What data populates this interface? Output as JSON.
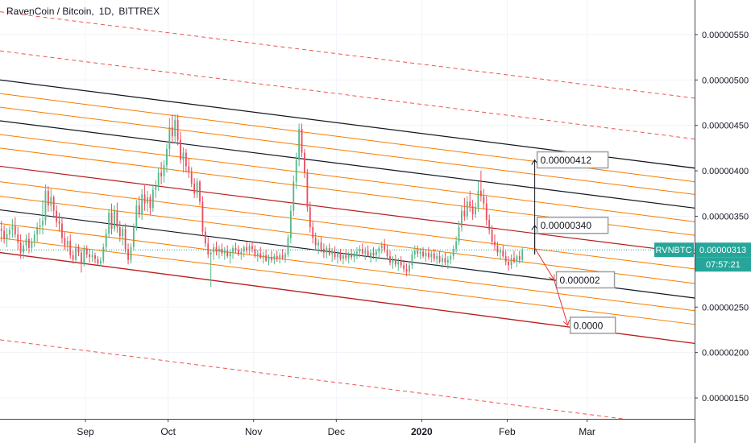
{
  "title": {
    "symbol": "RavenCoin / Bitcoin",
    "interval": "1D",
    "exchange": "BITTREX"
  },
  "chart_data": {
    "type": "candlestick",
    "title": "RavenCoin / Bitcoin, 1D, BITTREX",
    "x_labels": [
      "Sep",
      "Oct",
      "Nov",
      "Dec",
      "2020",
      "Feb",
      "Mar"
    ],
    "x_label_days": [
      31,
      61,
      92,
      122,
      153,
      184,
      213
    ],
    "x_label_bold": [
      false,
      false,
      false,
      false,
      true,
      false,
      false
    ],
    "x_range_days": [
      0,
      252
    ],
    "x_unit": "days from Aug 1, 2019",
    "y_ticks": [
      "0.00000550",
      "0.00000500",
      "0.00000450",
      "0.00000400",
      "0.00000350",
      "0.00000250",
      "0.00000200",
      "0.00000150"
    ],
    "y_tick_values": [
      550,
      500,
      450,
      400,
      350,
      250,
      200,
      150
    ],
    "y_partial_tick": "0.",
    "y_partial_tick_value": 300,
    "y_range": [
      127,
      588
    ],
    "y_unit": "price x 1e-8 BTC",
    "candles": [
      [
        0,
        336,
        345,
        322,
        334
      ],
      [
        1,
        334,
        340,
        320,
        325
      ],
      [
        2,
        325,
        337,
        316,
        330
      ],
      [
        3,
        330,
        339,
        324,
        335
      ],
      [
        4,
        335,
        347,
        326,
        339
      ],
      [
        5,
        339,
        349,
        326,
        330
      ],
      [
        6,
        330,
        338,
        313,
        321
      ],
      [
        7,
        321,
        330,
        303,
        310
      ],
      [
        8,
        310,
        323,
        303,
        318
      ],
      [
        9,
        318,
        330,
        312,
        325
      ],
      [
        10,
        325,
        332,
        309,
        315
      ],
      [
        11,
        315,
        326,
        310,
        322
      ],
      [
        12,
        322,
        334,
        316,
        330
      ],
      [
        13,
        330,
        343,
        321,
        338
      ],
      [
        14,
        338,
        348,
        330,
        340
      ],
      [
        15,
        340,
        368,
        330,
        345
      ],
      [
        16,
        345,
        385,
        340,
        378
      ],
      [
        17,
        378,
        383,
        355,
        362
      ],
      [
        18,
        362,
        380,
        355,
        371
      ],
      [
        19,
        371,
        373,
        348,
        356
      ],
      [
        20,
        356,
        362,
        338,
        344
      ],
      [
        21,
        344,
        354,
        333,
        342
      ],
      [
        22,
        342,
        348,
        320,
        326
      ],
      [
        23,
        326,
        333,
        313,
        318
      ],
      [
        24,
        318,
        328,
        311,
        323
      ],
      [
        25,
        323,
        330,
        303,
        307
      ],
      [
        26,
        307,
        312,
        298,
        302
      ],
      [
        27,
        302,
        320,
        298,
        316
      ],
      [
        28,
        316,
        319,
        306,
        310
      ],
      [
        29,
        310,
        314,
        288,
        298
      ],
      [
        30,
        298,
        318,
        295,
        314
      ],
      [
        31,
        314,
        318,
        304,
        308
      ],
      [
        32,
        308,
        314,
        299,
        305
      ],
      [
        33,
        305,
        312,
        300,
        307
      ],
      [
        34,
        307,
        310,
        298,
        303
      ],
      [
        35,
        303,
        306,
        296,
        298
      ],
      [
        36,
        298,
        305,
        295,
        301
      ],
      [
        37,
        301,
        320,
        298,
        316
      ],
      [
        38,
        316,
        336,
        312,
        331
      ],
      [
        39,
        331,
        358,
        326,
        354
      ],
      [
        40,
        354,
        364,
        330,
        336
      ],
      [
        41,
        336,
        362,
        333,
        356
      ],
      [
        42,
        356,
        365,
        332,
        338
      ],
      [
        43,
        338,
        345,
        322,
        328
      ],
      [
        44,
        328,
        340,
        318,
        336
      ],
      [
        45,
        336,
        342,
        310,
        314
      ],
      [
        46,
        314,
        320,
        297,
        302
      ],
      [
        47,
        302,
        320,
        298,
        316
      ],
      [
        48,
        316,
        342,
        312,
        338
      ],
      [
        49,
        338,
        368,
        334,
        362
      ],
      [
        50,
        362,
        372,
        348,
        352
      ],
      [
        51,
        352,
        380,
        346,
        374
      ],
      [
        52,
        374,
        384,
        356,
        364
      ],
      [
        53,
        364,
        378,
        355,
        371
      ],
      [
        54,
        371,
        374,
        351,
        359
      ],
      [
        55,
        359,
        385,
        355,
        379
      ],
      [
        56,
        379,
        390,
        370,
        383
      ],
      [
        57,
        383,
        404,
        378,
        398
      ],
      [
        58,
        398,
        410,
        385,
        394
      ],
      [
        59,
        394,
        412,
        387,
        406
      ],
      [
        60,
        406,
        430,
        398,
        424
      ],
      [
        61,
        424,
        458,
        417,
        448
      ],
      [
        62,
        448,
        462,
        430,
        438
      ],
      [
        63,
        438,
        462,
        430,
        456
      ],
      [
        64,
        456,
        462,
        428,
        434
      ],
      [
        65,
        434,
        443,
        408,
        412
      ],
      [
        66,
        412,
        426,
        398,
        420
      ],
      [
        67,
        420,
        424,
        398,
        405
      ],
      [
        68,
        405,
        414,
        392,
        398
      ],
      [
        69,
        398,
        404,
        382,
        386
      ],
      [
        70,
        386,
        392,
        370,
        375
      ],
      [
        71,
        375,
        392,
        370,
        388
      ],
      [
        72,
        388,
        390,
        362,
        366
      ],
      [
        73,
        366,
        372,
        328,
        333
      ],
      [
        74,
        333,
        338,
        316,
        320
      ],
      [
        75,
        320,
        327,
        304,
        308
      ],
      [
        76,
        308,
        314,
        272,
        310
      ],
      [
        77,
        310,
        320,
        302,
        316
      ],
      [
        78,
        316,
        322,
        307,
        311
      ],
      [
        79,
        311,
        318,
        303,
        314
      ],
      [
        80,
        314,
        320,
        306,
        309
      ],
      [
        81,
        309,
        316,
        302,
        312
      ],
      [
        82,
        312,
        318,
        304,
        306
      ],
      [
        83,
        306,
        314,
        298,
        310
      ],
      [
        84,
        310,
        318,
        303,
        315
      ],
      [
        85,
        315,
        321,
        309,
        313
      ],
      [
        86,
        313,
        318,
        306,
        308
      ],
      [
        87,
        308,
        315,
        302,
        311
      ],
      [
        88,
        311,
        318,
        305,
        316
      ],
      [
        89,
        316,
        322,
        309,
        312
      ],
      [
        90,
        312,
        320,
        307,
        317
      ],
      [
        91,
        317,
        322,
        310,
        314
      ],
      [
        92,
        314,
        318,
        304,
        307
      ],
      [
        93,
        307,
        313,
        300,
        309
      ],
      [
        94,
        309,
        316,
        303,
        304
      ],
      [
        95,
        304,
        311,
        298,
        307
      ],
      [
        96,
        307,
        313,
        300,
        301
      ],
      [
        97,
        301,
        308,
        296,
        305
      ],
      [
        98,
        305,
        312,
        299,
        302
      ],
      [
        99,
        302,
        309,
        297,
        306
      ],
      [
        100,
        306,
        312,
        300,
        303
      ],
      [
        101,
        303,
        310,
        298,
        307
      ],
      [
        102,
        307,
        314,
        302,
        304
      ],
      [
        103,
        304,
        311,
        299,
        308
      ],
      [
        104,
        308,
        330,
        305,
        326
      ],
      [
        105,
        326,
        362,
        320,
        356
      ],
      [
        106,
        356,
        395,
        350,
        388
      ],
      [
        107,
        388,
        420,
        380,
        412
      ],
      [
        108,
        412,
        452,
        405,
        446
      ],
      [
        109,
        446,
        452,
        415,
        420
      ],
      [
        110,
        420,
        424,
        392,
        398
      ],
      [
        111,
        398,
        402,
        355,
        360
      ],
      [
        112,
        360,
        366,
        332,
        338
      ],
      [
        113,
        338,
        344,
        320,
        326
      ],
      [
        114,
        326,
        332,
        312,
        318
      ],
      [
        115,
        318,
        325,
        308,
        321
      ],
      [
        116,
        321,
        327,
        310,
        314
      ],
      [
        117,
        314,
        320,
        304,
        310
      ],
      [
        118,
        310,
        318,
        304,
        315
      ],
      [
        119,
        315,
        320,
        306,
        308
      ],
      [
        120,
        308,
        315,
        300,
        311
      ],
      [
        121,
        311,
        317,
        302,
        305
      ],
      [
        122,
        305,
        312,
        298,
        309
      ],
      [
        123,
        309,
        314,
        301,
        303
      ],
      [
        124,
        303,
        310,
        297,
        307
      ],
      [
        125,
        307,
        314,
        301,
        304
      ],
      [
        126,
        304,
        311,
        298,
        308
      ],
      [
        127,
        308,
        314,
        302,
        305
      ],
      [
        128,
        305,
        312,
        299,
        309
      ],
      [
        129,
        309,
        316,
        303,
        311
      ],
      [
        130,
        311,
        318,
        305,
        314
      ],
      [
        131,
        314,
        320,
        306,
        309
      ],
      [
        132,
        309,
        316,
        302,
        312
      ],
      [
        133,
        312,
        318,
        305,
        306
      ],
      [
        134,
        306,
        313,
        299,
        310
      ],
      [
        135,
        310,
        316,
        303,
        307
      ],
      [
        136,
        307,
        314,
        300,
        311
      ],
      [
        137,
        311,
        318,
        304,
        315
      ],
      [
        138,
        315,
        322,
        309,
        318
      ],
      [
        139,
        318,
        325,
        310,
        313
      ],
      [
        140,
        313,
        318,
        303,
        306
      ],
      [
        141,
        306,
        312,
        296,
        299
      ],
      [
        142,
        299,
        306,
        292,
        302
      ],
      [
        143,
        302,
        308,
        294,
        297
      ],
      [
        144,
        297,
        304,
        290,
        300
      ],
      [
        145,
        300,
        306,
        293,
        296
      ],
      [
        146,
        296,
        302,
        288,
        292
      ],
      [
        147,
        292,
        298,
        284,
        289
      ],
      [
        148,
        289,
        300,
        285,
        296
      ],
      [
        149,
        296,
        312,
        292,
        308
      ],
      [
        150,
        308,
        318,
        303,
        312
      ],
      [
        151,
        312,
        318,
        305,
        309
      ],
      [
        152,
        309,
        315,
        303,
        311
      ],
      [
        153,
        311,
        316,
        304,
        306
      ],
      [
        154,
        306,
        314,
        300,
        310
      ],
      [
        155,
        310,
        316,
        302,
        305
      ],
      [
        156,
        305,
        312,
        299,
        309
      ],
      [
        157,
        309,
        314,
        300,
        303
      ],
      [
        158,
        303,
        310,
        296,
        306
      ],
      [
        159,
        306,
        312,
        298,
        300
      ],
      [
        160,
        300,
        308,
        293,
        304
      ],
      [
        161,
        304,
        310,
        296,
        299
      ],
      [
        162,
        299,
        306,
        292,
        302
      ],
      [
        163,
        302,
        310,
        297,
        306
      ],
      [
        164,
        306,
        318,
        302,
        314
      ],
      [
        165,
        314,
        328,
        310,
        322
      ],
      [
        166,
        322,
        345,
        318,
        338
      ],
      [
        167,
        338,
        362,
        333,
        356
      ],
      [
        168,
        356,
        370,
        345,
        350
      ],
      [
        169,
        350,
        372,
        346,
        366
      ],
      [
        170,
        366,
        378,
        355,
        361
      ],
      [
        171,
        361,
        368,
        346,
        352
      ],
      [
        172,
        352,
        365,
        348,
        360
      ],
      [
        173,
        360,
        388,
        355,
        378
      ],
      [
        174,
        378,
        400,
        366,
        372
      ],
      [
        175,
        372,
        380,
        358,
        364
      ],
      [
        176,
        364,
        372,
        340,
        346
      ],
      [
        177,
        346,
        352,
        330,
        335
      ],
      [
        178,
        335,
        340,
        318,
        322
      ],
      [
        179,
        322,
        330,
        312,
        318
      ],
      [
        180,
        318,
        322,
        306,
        310
      ],
      [
        181,
        310,
        316,
        302,
        312
      ],
      [
        182,
        312,
        318,
        304,
        306
      ],
      [
        183,
        306,
        312,
        296,
        300
      ],
      [
        184,
        300,
        306,
        290,
        296
      ],
      [
        185,
        296,
        308,
        292,
        304
      ],
      [
        186,
        304,
        312,
        298,
        300
      ],
      [
        187,
        300,
        308,
        294,
        306
      ],
      [
        188,
        306,
        312,
        298,
        302
      ],
      [
        189,
        302,
        316,
        299,
        313
      ]
    ],
    "candle_up_color": "#53b987",
    "candle_down_color": "#eb4d5c",
    "channel_lines": [
      {
        "y_start": 500,
        "y_end": 403,
        "color": "#131722",
        "width": 1.3,
        "dash": false
      },
      {
        "y_start": 485,
        "y_end": 388,
        "color": "#f57c00",
        "width": 1,
        "dash": false
      },
      {
        "y_start": 470,
        "y_end": 374,
        "color": "#f57c00",
        "width": 1,
        "dash": false
      },
      {
        "y_start": 455,
        "y_end": 359,
        "color": "#131722",
        "width": 1.2,
        "dash": false
      },
      {
        "y_start": 440,
        "y_end": 344,
        "color": "#f57c00",
        "width": 1,
        "dash": false
      },
      {
        "y_start": 425,
        "y_end": 329,
        "color": "#f57c00",
        "width": 1,
        "dash": false
      },
      {
        "y_start": 405,
        "y_end": 309,
        "color": "#b71c1c",
        "width": 1.2,
        "dash": false
      },
      {
        "y_start": 388,
        "y_end": 292,
        "color": "#f57c00",
        "width": 1,
        "dash": false
      },
      {
        "y_start": 372,
        "y_end": 276,
        "color": "#f57c00",
        "width": 1,
        "dash": false
      },
      {
        "y_start": 357,
        "y_end": 260,
        "color": "#131722",
        "width": 1.2,
        "dash": false
      },
      {
        "y_start": 342,
        "y_end": 246,
        "color": "#f57c00",
        "width": 1,
        "dash": false
      },
      {
        "y_start": 326,
        "y_end": 231,
        "color": "#f57c00",
        "width": 1,
        "dash": false
      },
      {
        "y_start": 310,
        "y_end": 210,
        "color": "#b71c1c",
        "width": 1.3,
        "dash": false
      },
      {
        "y_start": 575,
        "y_end": 480,
        "color": "#ef5350",
        "width": 1,
        "dash": true
      },
      {
        "y_start": 532,
        "y_end": 435,
        "color": "#ef5350",
        "width": 1,
        "dash": true
      },
      {
        "y_start": 214,
        "y_end": 117,
        "color": "#ef5350",
        "width": 1,
        "dash": true
      }
    ],
    "current_price_line": 313,
    "annotations": [
      {
        "text": "0.00000412",
        "arrow_from": [
          194,
          308
        ],
        "arrow_to": [
          194,
          412
        ],
        "arrow_color": "#131722"
      },
      {
        "text": "0.00000340",
        "arrow_from": [
          194,
          308
        ],
        "arrow_to": [
          194,
          340
        ],
        "arrow_color": "#131722"
      },
      {
        "text": "0.000002",
        "arrow_from": [
          194,
          315
        ],
        "arrow_to": [
          201,
          280
        ],
        "arrow_color": "#e53935"
      },
      {
        "text": "0.0000",
        "arrow_from": [
          201,
          280
        ],
        "arrow_to": [
          206,
          230
        ],
        "arrow_color": "#e53935"
      }
    ],
    "price_tag": {
      "symbol": "RVNBTC",
      "price": "0.00000313",
      "countdown": "07:57:21",
      "color": "#26a69a"
    },
    "grid": true,
    "log_scale": false
  }
}
